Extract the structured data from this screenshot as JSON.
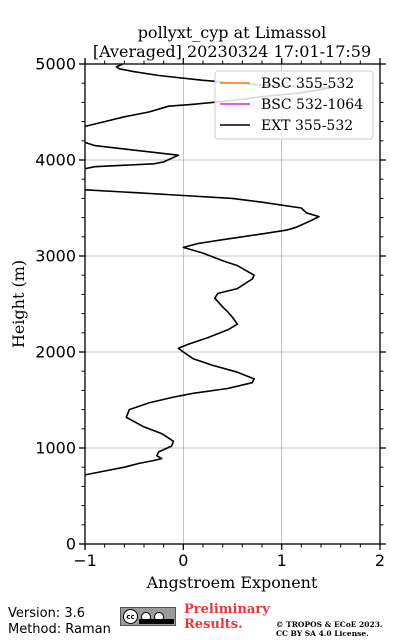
{
  "chart_data": {
    "type": "line",
    "title_line1": "pollyxt_cyp at Limassol",
    "title_line2": "[Averaged] 20230324 17:01-17:59",
    "xlabel": "Angstroem Exponent",
    "ylabel": "Height (m)",
    "xlim": [
      -1,
      2
    ],
    "ylim": [
      0,
      5000
    ],
    "xticks": [
      "−1",
      "0",
      "1",
      "2"
    ],
    "yticks": [
      "0",
      "1000",
      "2000",
      "3000",
      "4000",
      "5000"
    ],
    "grid": true,
    "legend_position": "top-right",
    "series": [
      {
        "name": "BSC 355-532",
        "color": "#ff7f0e",
        "points": []
      },
      {
        "name": "BSC 532-1064",
        "color": "#e020e0",
        "points": []
      },
      {
        "name": "EXT 355-532",
        "color": "#000000",
        "points": [
          [
            -1.0,
            720
          ],
          [
            -0.8,
            760
          ],
          [
            -0.6,
            800
          ],
          [
            -0.45,
            840
          ],
          [
            -0.3,
            870
          ],
          [
            -0.22,
            890
          ],
          [
            -0.27,
            920
          ],
          [
            -0.25,
            960
          ],
          [
            -0.12,
            1020
          ],
          [
            -0.1,
            1070
          ],
          [
            -0.22,
            1150
          ],
          [
            -0.4,
            1220
          ],
          [
            -0.58,
            1320
          ],
          [
            -0.55,
            1400
          ],
          [
            -0.35,
            1470
          ],
          [
            -0.1,
            1530
          ],
          [
            0.1,
            1570
          ],
          [
            0.45,
            1620
          ],
          [
            0.7,
            1680
          ],
          [
            0.72,
            1720
          ],
          [
            0.55,
            1790
          ],
          [
            0.3,
            1860
          ],
          [
            0.1,
            1930
          ],
          [
            0.0,
            2000
          ],
          [
            -0.05,
            2040
          ],
          [
            0.05,
            2080
          ],
          [
            0.25,
            2150
          ],
          [
            0.45,
            2230
          ],
          [
            0.55,
            2290
          ],
          [
            0.5,
            2360
          ],
          [
            0.45,
            2420
          ],
          [
            0.4,
            2470
          ],
          [
            0.32,
            2560
          ],
          [
            0.35,
            2610
          ],
          [
            0.55,
            2660
          ],
          [
            0.7,
            2760
          ],
          [
            0.72,
            2800
          ],
          [
            0.55,
            2900
          ],
          [
            0.4,
            2950
          ],
          [
            0.2,
            3030
          ],
          [
            0.0,
            3090
          ],
          [
            0.15,
            3130
          ],
          [
            0.4,
            3170
          ],
          [
            0.8,
            3230
          ],
          [
            1.05,
            3270
          ],
          [
            1.15,
            3300
          ],
          [
            1.3,
            3370
          ],
          [
            1.38,
            3410
          ],
          [
            1.25,
            3450
          ],
          [
            1.2,
            3500
          ],
          [
            0.8,
            3560
          ],
          [
            0.5,
            3600
          ],
          [
            0.0,
            3630
          ],
          [
            -0.5,
            3660
          ],
          [
            -1.0,
            3690
          ],
          [
            -1.05,
            3900
          ],
          [
            -0.9,
            3930
          ],
          [
            -0.3,
            3960
          ],
          [
            -0.2,
            3980
          ],
          [
            -0.05,
            4050
          ],
          [
            -0.9,
            4150
          ],
          [
            -1.05,
            4200
          ],
          [
            -1.05,
            4320
          ],
          [
            -1.0,
            4350
          ],
          [
            -0.8,
            4400
          ],
          [
            -0.6,
            4450
          ],
          [
            -0.35,
            4500
          ],
          [
            -0.15,
            4560
          ],
          [
            0.1,
            4580
          ],
          [
            0.5,
            4620
          ],
          [
            0.8,
            4660
          ],
          [
            1.2,
            4700
          ],
          [
            1.5,
            4750
          ],
          [
            0.8,
            4780
          ],
          [
            0.2,
            4830
          ],
          [
            -0.25,
            4880
          ],
          [
            -0.5,
            4920
          ],
          [
            -0.65,
            4950
          ],
          [
            -0.68,
            4970
          ],
          [
            -0.62,
            5000
          ]
        ]
      }
    ]
  },
  "footer": {
    "version": "Version: 3.6",
    "method": "Method: Raman",
    "license_badge_icon": "cc-by-sa-icon",
    "cc_text": "cc",
    "preliminary_line1": "Preliminary",
    "preliminary_line2": "Results.",
    "copyright_line1": "© TROPOS & ECoE 2023.",
    "copyright_line2": "CC BY SA 4.0 License."
  }
}
